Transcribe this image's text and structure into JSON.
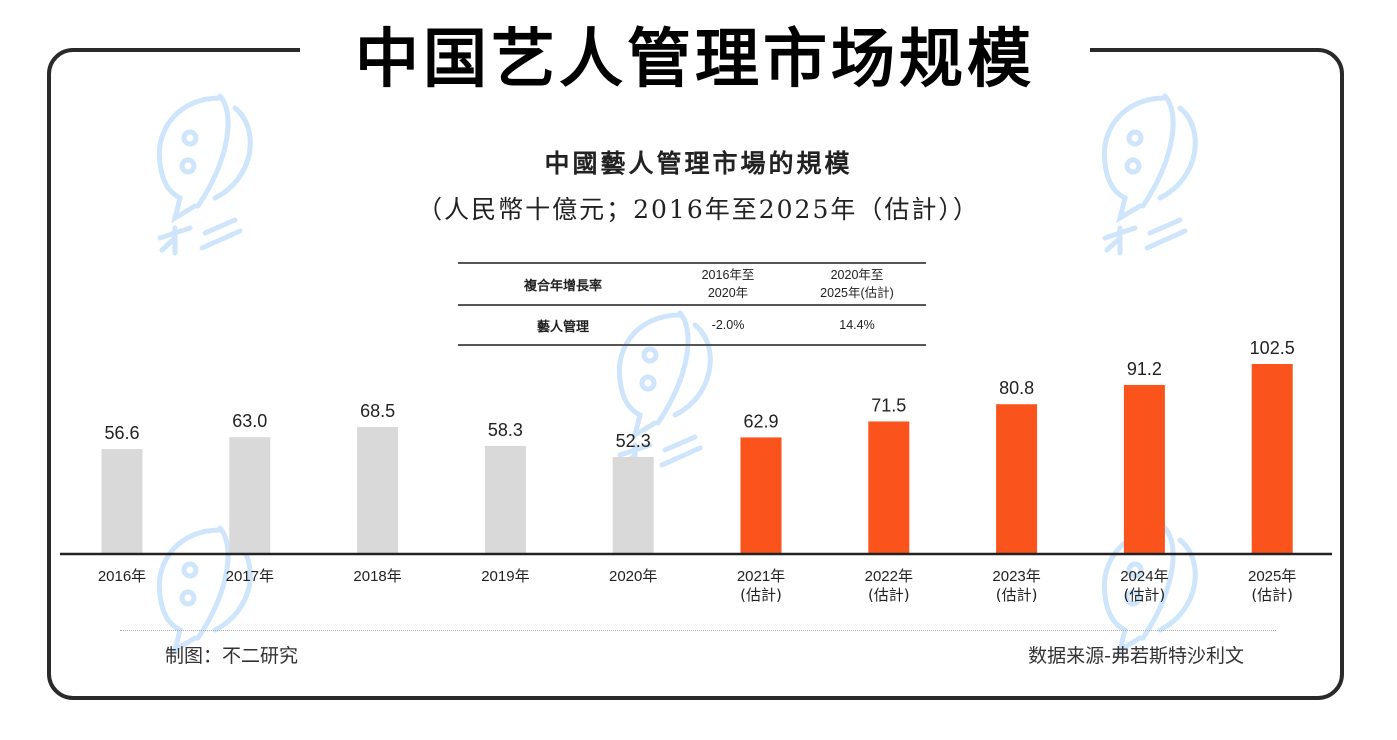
{
  "header": {
    "main_title": "中国艺人管理市场规模"
  },
  "chart_subtitle": {
    "line1": "中國藝人管理市場的規模",
    "line2": "（人民幣十億元；2016年至2025年（估計））"
  },
  "cagr_table": {
    "header": [
      "複合年增長率",
      "2016年至\n2020年",
      "2020年至\n2025年(估計)"
    ],
    "header_lines": [
      [
        "複合年增長率"
      ],
      [
        "2016年至",
        "2020年"
      ],
      [
        "2020年至",
        "2025年(估計)"
      ]
    ],
    "rows": [
      {
        "label": "藝人管理",
        "v1": "-2.0%",
        "v2": "14.4%"
      }
    ]
  },
  "chart_data": {
    "type": "bar",
    "title": "中國藝人管理市場的規模",
    "subtitle": "（人民幣十億元；2016年至2025年（估計））",
    "xlabel": "",
    "ylabel": "人民幣十億元",
    "ylim": [
      0,
      102.5
    ],
    "grid": false,
    "categories": [
      "2016年",
      "2017年",
      "2018年",
      "2019年",
      "2020年",
      "2021年",
      "2022年",
      "2023年",
      "2024年",
      "2025年"
    ],
    "category_notes": [
      "",
      "",
      "",
      "",
      "",
      "(估計)",
      "(估計)",
      "(估計)",
      "(估計)",
      "(估計)"
    ],
    "values": [
      56.6,
      63.0,
      68.5,
      58.3,
      52.3,
      62.9,
      71.5,
      80.8,
      91.2,
      102.5
    ],
    "value_labels": [
      "56.6",
      "63.0",
      "68.5",
      "58.3",
      "52.3",
      "62.9",
      "71.5",
      "80.8",
      "91.2",
      "102.5"
    ],
    "estimated": [
      false,
      false,
      false,
      false,
      false,
      true,
      true,
      true,
      true,
      true
    ],
    "colors": {
      "historical": "#d9d9d9",
      "estimated": "#fa541c",
      "axis": "#222222"
    }
  },
  "footer": {
    "credit": "制图：不二研究",
    "source": "数据来源-弗若斯特沙利文"
  },
  "watermark": {
    "text": "不二研究",
    "color": "#cfe5fb"
  }
}
